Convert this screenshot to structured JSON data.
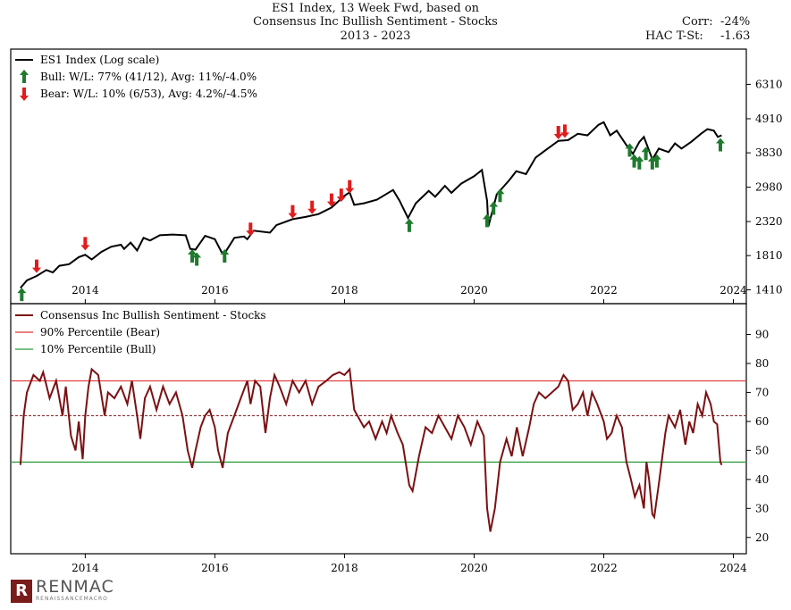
{
  "header": {
    "title_line1": "ES1 Index, 13 Week Fwd, based on",
    "title_line2": "Consensus Inc Bullish Sentiment - Stocks",
    "title_line3": "2013 - 2023",
    "corr_label": "Corr:",
    "corr_value": "-24%",
    "tstat_label": "HAC T-St:",
    "tstat_value": "-1.63"
  },
  "logo": {
    "name": "RENMAC",
    "tagline": "RENAISSANCEMACRO",
    "mark": "R"
  },
  "colors": {
    "index_line": "#000000",
    "sentiment_line": "#7b1113",
    "bear": "#e01c1c",
    "bull": "#1f7a2e",
    "bear_line": "#e03030",
    "bull_line": "#2a9a3a"
  },
  "chart_data": [
    {
      "type": "line",
      "y_scale": "log",
      "ylim": [
        1300,
        8000
      ],
      "yticks": [
        1410,
        1810,
        2320,
        2980,
        3830,
        4910,
        6310
      ],
      "ytick_labels": [
        "1410",
        "1810",
        "2320",
        "2980",
        "3830",
        "4910",
        "6310"
      ],
      "xlim": [
        2012.85,
        2024.2
      ],
      "xticks": [
        2014,
        2016,
        2018,
        2020,
        2022,
        2024
      ],
      "xtick_labels": [
        "2014",
        "2016",
        "2018",
        "2020",
        "2022",
        "2024"
      ],
      "legend": {
        "position": "top-left",
        "entries": [
          {
            "label": "ES1 Index (Log scale)",
            "marker": "line"
          },
          {
            "label": "Bull:   W/L: 77% (41/12), Avg: 11%/-4.0%",
            "marker": "bull-arrow"
          },
          {
            "label": "Bear:   W/L: 10% (6/53), Avg: 4.2%/-4.5%",
            "marker": "bear-arrow"
          }
        ]
      },
      "series": [
        {
          "name": "ES1 Index (Log scale)",
          "points": [
            [
              2013.0,
              1430
            ],
            [
              2013.1,
              1510
            ],
            [
              2013.25,
              1560
            ],
            [
              2013.4,
              1630
            ],
            [
              2013.5,
              1600
            ],
            [
              2013.6,
              1680
            ],
            [
              2013.75,
              1700
            ],
            [
              2013.9,
              1790
            ],
            [
              2014.0,
              1820
            ],
            [
              2014.1,
              1760
            ],
            [
              2014.25,
              1860
            ],
            [
              2014.4,
              1930
            ],
            [
              2014.55,
              1960
            ],
            [
              2014.6,
              1900
            ],
            [
              2014.7,
              1990
            ],
            [
              2014.8,
              1880
            ],
            [
              2014.9,
              2060
            ],
            [
              2015.0,
              2020
            ],
            [
              2015.15,
              2100
            ],
            [
              2015.35,
              2110
            ],
            [
              2015.55,
              2100
            ],
            [
              2015.62,
              1900
            ],
            [
              2015.7,
              1890
            ],
            [
              2015.85,
              2090
            ],
            [
              2016.0,
              2040
            ],
            [
              2016.1,
              1860
            ],
            [
              2016.15,
              1840
            ],
            [
              2016.3,
              2060
            ],
            [
              2016.45,
              2080
            ],
            [
              2016.5,
              2040
            ],
            [
              2016.6,
              2170
            ],
            [
              2016.85,
              2140
            ],
            [
              2016.95,
              2260
            ],
            [
              2017.2,
              2360
            ],
            [
              2017.4,
              2400
            ],
            [
              2017.6,
              2450
            ],
            [
              2017.8,
              2570
            ],
            [
              2018.0,
              2800
            ],
            [
              2018.08,
              2870
            ],
            [
              2018.15,
              2620
            ],
            [
              2018.3,
              2650
            ],
            [
              2018.5,
              2720
            ],
            [
              2018.75,
              2920
            ],
            [
              2018.85,
              2700
            ],
            [
              2018.98,
              2380
            ],
            [
              2019.1,
              2650
            ],
            [
              2019.3,
              2900
            ],
            [
              2019.4,
              2780
            ],
            [
              2019.55,
              3010
            ],
            [
              2019.65,
              2860
            ],
            [
              2019.8,
              3060
            ],
            [
              2020.0,
              3230
            ],
            [
              2020.12,
              3380
            ],
            [
              2020.2,
              2700
            ],
            [
              2020.22,
              2240
            ],
            [
              2020.35,
              2830
            ],
            [
              2020.55,
              3150
            ],
            [
              2020.65,
              3350
            ],
            [
              2020.8,
              3280
            ],
            [
              2020.95,
              3700
            ],
            [
              2021.1,
              3900
            ],
            [
              2021.3,
              4180
            ],
            [
              2021.45,
              4200
            ],
            [
              2021.6,
              4400
            ],
            [
              2021.75,
              4350
            ],
            [
              2021.92,
              4700
            ],
            [
              2022.0,
              4790
            ],
            [
              2022.1,
              4350
            ],
            [
              2022.2,
              4500
            ],
            [
              2022.35,
              4050
            ],
            [
              2022.45,
              3800
            ],
            [
              2022.55,
              4150
            ],
            [
              2022.62,
              4300
            ],
            [
              2022.75,
              3650
            ],
            [
              2022.85,
              3950
            ],
            [
              2023.0,
              3850
            ],
            [
              2023.1,
              4100
            ],
            [
              2023.2,
              3950
            ],
            [
              2023.35,
              4150
            ],
            [
              2023.5,
              4400
            ],
            [
              2023.6,
              4550
            ],
            [
              2023.7,
              4500
            ],
            [
              2023.76,
              4300
            ],
            [
              2023.82,
              4350
            ]
          ]
        }
      ],
      "bull_signals": [
        [
          2013.02,
          1360
        ],
        [
          2015.65,
          1800
        ],
        [
          2015.72,
          1760
        ],
        [
          2016.15,
          1800
        ],
        [
          2019.0,
          2250
        ],
        [
          2020.2,
          2330
        ],
        [
          2020.3,
          2550
        ],
        [
          2020.4,
          2800
        ],
        [
          2022.4,
          3900
        ],
        [
          2022.47,
          3600
        ],
        [
          2022.55,
          3550
        ],
        [
          2022.65,
          3800
        ],
        [
          2022.75,
          3550
        ],
        [
          2022.82,
          3600
        ],
        [
          2023.8,
          4050
        ]
      ],
      "bear_signals": [
        [
          2013.25,
          1680
        ],
        [
          2014.0,
          1980
        ],
        [
          2016.55,
          2200
        ],
        [
          2017.2,
          2500
        ],
        [
          2017.5,
          2580
        ],
        [
          2017.8,
          2720
        ],
        [
          2017.95,
          2820
        ],
        [
          2018.08,
          3000
        ],
        [
          2021.3,
          4450
        ],
        [
          2021.4,
          4500
        ]
      ]
    },
    {
      "type": "line",
      "ylim": [
        15,
        100
      ],
      "yticks": [
        20,
        30,
        40,
        50,
        60,
        70,
        80,
        90
      ],
      "ytick_labels": [
        "20",
        "30",
        "40",
        "50",
        "60",
        "70",
        "80",
        "90"
      ],
      "xlim": [
        2012.85,
        2024.2
      ],
      "xticks": [
        2014,
        2016,
        2018,
        2020,
        2022,
        2024
      ],
      "xtick_labels": [
        "2014",
        "2016",
        "2018",
        "2020",
        "2022",
        "2024"
      ],
      "legend": {
        "position": "top-left",
        "entries": [
          {
            "label": "Consensus Inc Bullish Sentiment - Stocks",
            "marker": "line"
          },
          {
            "label": "90% Percentile (Bear)",
            "marker": "line"
          },
          {
            "label": "10% Percentile (Bull)",
            "marker": "line"
          }
        ]
      },
      "bear_threshold": 74,
      "bull_threshold": 46,
      "median": 62,
      "series": [
        {
          "name": "Consensus Inc Bullish Sentiment - Stocks",
          "points": [
            [
              2013.0,
              45
            ],
            [
              2013.05,
              62
            ],
            [
              2013.1,
              70
            ],
            [
              2013.2,
              76
            ],
            [
              2013.3,
              74
            ],
            [
              2013.35,
              77
            ],
            [
              2013.45,
              68
            ],
            [
              2013.55,
              74
            ],
            [
              2013.65,
              62
            ],
            [
              2013.7,
              72
            ],
            [
              2013.78,
              55
            ],
            [
              2013.85,
              50
            ],
            [
              2013.9,
              60
            ],
            [
              2013.96,
              47
            ],
            [
              2014.0,
              62
            ],
            [
              2014.05,
              72
            ],
            [
              2014.1,
              78
            ],
            [
              2014.2,
              76
            ],
            [
              2014.3,
              62
            ],
            [
              2014.35,
              70
            ],
            [
              2014.45,
              68
            ],
            [
              2014.55,
              72
            ],
            [
              2014.65,
              66
            ],
            [
              2014.72,
              74
            ],
            [
              2014.8,
              62
            ],
            [
              2014.85,
              54
            ],
            [
              2014.92,
              68
            ],
            [
              2015.0,
              72
            ],
            [
              2015.1,
              64
            ],
            [
              2015.2,
              72
            ],
            [
              2015.3,
              66
            ],
            [
              2015.4,
              70
            ],
            [
              2015.5,
              62
            ],
            [
              2015.58,
              50
            ],
            [
              2015.65,
              44
            ],
            [
              2015.7,
              50
            ],
            [
              2015.78,
              58
            ],
            [
              2015.85,
              62
            ],
            [
              2015.92,
              64
            ],
            [
              2016.0,
              58
            ],
            [
              2016.05,
              50
            ],
            [
              2016.12,
              44
            ],
            [
              2016.2,
              56
            ],
            [
              2016.3,
              62
            ],
            [
              2016.4,
              68
            ],
            [
              2016.5,
              74
            ],
            [
              2016.55,
              66
            ],
            [
              2016.62,
              74
            ],
            [
              2016.7,
              72
            ],
            [
              2016.78,
              56
            ],
            [
              2016.85,
              68
            ],
            [
              2016.92,
              76
            ],
            [
              2017.0,
              72
            ],
            [
              2017.1,
              66
            ],
            [
              2017.2,
              74
            ],
            [
              2017.3,
              70
            ],
            [
              2017.4,
              74
            ],
            [
              2017.5,
              66
            ],
            [
              2017.6,
              72
            ],
            [
              2017.72,
              74
            ],
            [
              2017.82,
              76
            ],
            [
              2017.92,
              77
            ],
            [
              2018.0,
              76
            ],
            [
              2018.08,
              78
            ],
            [
              2018.15,
              64
            ],
            [
              2018.2,
              62
            ],
            [
              2018.3,
              58
            ],
            [
              2018.38,
              60
            ],
            [
              2018.48,
              54
            ],
            [
              2018.58,
              60
            ],
            [
              2018.65,
              56
            ],
            [
              2018.72,
              62
            ],
            [
              2018.82,
              56
            ],
            [
              2018.9,
              52
            ],
            [
              2019.0,
              38
            ],
            [
              2019.05,
              36
            ],
            [
              2019.15,
              48
            ],
            [
              2019.25,
              58
            ],
            [
              2019.35,
              56
            ],
            [
              2019.45,
              62
            ],
            [
              2019.55,
              58
            ],
            [
              2019.65,
              54
            ],
            [
              2019.75,
              62
            ],
            [
              2019.85,
              58
            ],
            [
              2019.95,
              52
            ],
            [
              2020.05,
              60
            ],
            [
              2020.15,
              55
            ],
            [
              2020.2,
              30
            ],
            [
              2020.25,
              22
            ],
            [
              2020.32,
              30
            ],
            [
              2020.4,
              46
            ],
            [
              2020.5,
              54
            ],
            [
              2020.58,
              48
            ],
            [
              2020.66,
              58
            ],
            [
              2020.75,
              48
            ],
            [
              2020.85,
              58
            ],
            [
              2020.92,
              66
            ],
            [
              2021.0,
              70
            ],
            [
              2021.1,
              68
            ],
            [
              2021.2,
              70
            ],
            [
              2021.3,
              72
            ],
            [
              2021.38,
              76
            ],
            [
              2021.45,
              74
            ],
            [
              2021.52,
              64
            ],
            [
              2021.6,
              66
            ],
            [
              2021.68,
              70
            ],
            [
              2021.75,
              62
            ],
            [
              2021.82,
              70
            ],
            [
              2021.9,
              66
            ],
            [
              2022.0,
              60
            ],
            [
              2022.05,
              54
            ],
            [
              2022.12,
              56
            ],
            [
              2022.2,
              62
            ],
            [
              2022.28,
              58
            ],
            [
              2022.35,
              46
            ],
            [
              2022.42,
              40
            ],
            [
              2022.48,
              34
            ],
            [
              2022.55,
              38
            ],
            [
              2022.62,
              30
            ],
            [
              2022.66,
              46
            ],
            [
              2022.7,
              40
            ],
            [
              2022.75,
              28
            ],
            [
              2022.78,
              27
            ],
            [
              2022.86,
              40
            ],
            [
              2022.95,
              56
            ],
            [
              2023.0,
              62
            ],
            [
              2023.1,
              58
            ],
            [
              2023.18,
              64
            ],
            [
              2023.26,
              52
            ],
            [
              2023.32,
              60
            ],
            [
              2023.38,
              56
            ],
            [
              2023.45,
              66
            ],
            [
              2023.52,
              62
            ],
            [
              2023.58,
              70
            ],
            [
              2023.65,
              66
            ],
            [
              2023.7,
              60
            ],
            [
              2023.75,
              59
            ],
            [
              2023.8,
              46
            ],
            [
              2023.82,
              45
            ]
          ]
        }
      ]
    }
  ]
}
